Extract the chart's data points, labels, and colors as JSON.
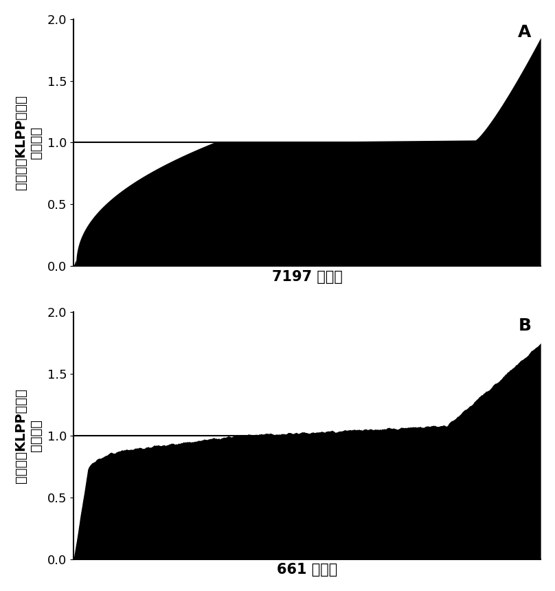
{
  "panel_A": {
    "n_mutants": 7197,
    "xlabel": "7197 突变体",
    "panel_label": "A",
    "ylim": [
      0,
      2
    ],
    "yticks": [
      0,
      0.5,
      1,
      1.5,
      2
    ],
    "hline_y": 1.0
  },
  "panel_B": {
    "n_mutants": 661,
    "xlabel": "661 突变体",
    "panel_label": "B",
    "ylim": [
      0,
      2
    ],
    "yticks": [
      0,
      0.5,
      1,
      1.5,
      2
    ],
    "hline_y": 1.0
  },
  "ylabel_line1": "突变株对KLPP丙酮酸",
  "ylabel_line2": "相对产量",
  "fill_color": "#000000",
  "line_color": "#000000",
  "background_color": "#ffffff",
  "panel_label_fontsize": 18,
  "label_fontsize": 14,
  "tick_fontsize": 13
}
